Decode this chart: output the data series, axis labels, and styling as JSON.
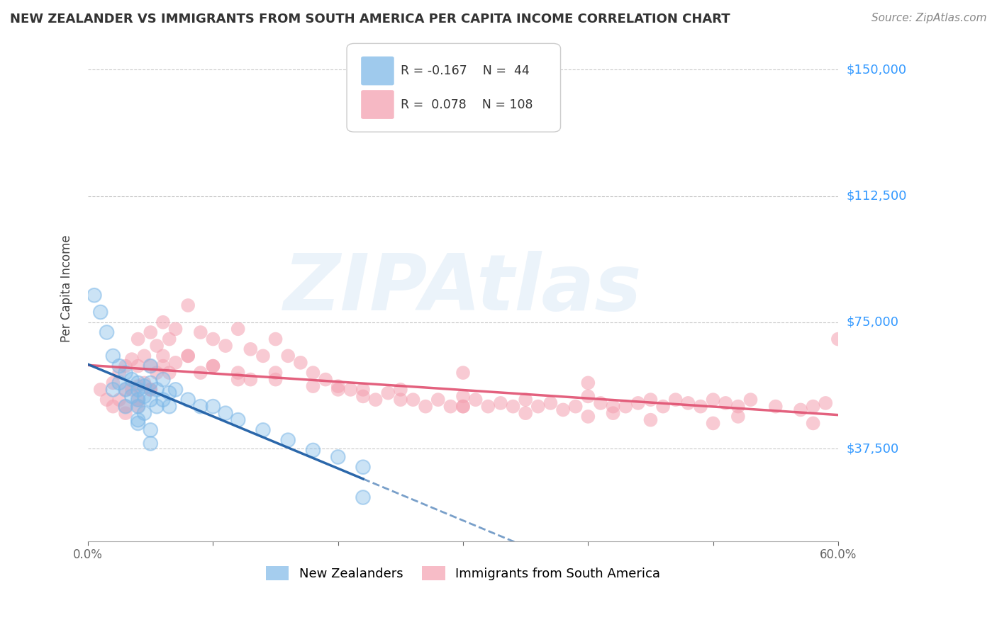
{
  "title": "NEW ZEALANDER VS IMMIGRANTS FROM SOUTH AMERICA PER CAPITA INCOME CORRELATION CHART",
  "source": "Source: ZipAtlas.com",
  "ylabel": "Per Capita Income",
  "y_ticks": [
    37500,
    75000,
    112500,
    150000
  ],
  "y_tick_labels": [
    "$37,500",
    "$75,000",
    "$112,500",
    "$150,000"
  ],
  "x_min": 0.0,
  "x_max": 0.6,
  "y_min": 10000,
  "y_max": 160000,
  "legend_r1": "R = -0.167",
  "legend_n1": "N =  44",
  "legend_r2": "R =  0.078",
  "legend_n2": "N = 108",
  "watermark": "ZIPAtlas",
  "blue_color": "#7fb9e8",
  "pink_color": "#f4a0b0",
  "blue_line_color": "#1f5fa6",
  "pink_line_color": "#e05070",
  "nz_x": [
    0.005,
    0.01,
    0.015,
    0.02,
    0.02,
    0.025,
    0.025,
    0.03,
    0.03,
    0.03,
    0.035,
    0.035,
    0.04,
    0.04,
    0.04,
    0.04,
    0.04,
    0.045,
    0.045,
    0.045,
    0.05,
    0.05,
    0.05,
    0.055,
    0.055,
    0.06,
    0.06,
    0.065,
    0.065,
    0.07,
    0.08,
    0.09,
    0.1,
    0.11,
    0.12,
    0.14,
    0.16,
    0.18,
    0.2,
    0.22,
    0.04,
    0.05,
    0.05,
    0.22
  ],
  "nz_y": [
    83000,
    78000,
    72000,
    65000,
    55000,
    62000,
    57000,
    60000,
    55000,
    50000,
    58000,
    53000,
    57000,
    55000,
    52000,
    50000,
    46000,
    56000,
    53000,
    48000,
    62000,
    57000,
    52000,
    55000,
    50000,
    58000,
    52000,
    54000,
    50000,
    55000,
    52000,
    50000,
    50000,
    48000,
    46000,
    43000,
    40000,
    37000,
    35000,
    32000,
    45000,
    43000,
    39000,
    23000
  ],
  "sa_x": [
    0.01,
    0.015,
    0.02,
    0.02,
    0.025,
    0.025,
    0.03,
    0.03,
    0.03,
    0.035,
    0.035,
    0.04,
    0.04,
    0.04,
    0.04,
    0.045,
    0.045,
    0.05,
    0.05,
    0.05,
    0.055,
    0.055,
    0.06,
    0.06,
    0.065,
    0.065,
    0.07,
    0.07,
    0.08,
    0.08,
    0.09,
    0.09,
    0.1,
    0.1,
    0.11,
    0.12,
    0.12,
    0.13,
    0.14,
    0.15,
    0.15,
    0.16,
    0.17,
    0.18,
    0.19,
    0.2,
    0.21,
    0.22,
    0.23,
    0.24,
    0.25,
    0.26,
    0.27,
    0.28,
    0.29,
    0.3,
    0.31,
    0.32,
    0.33,
    0.34,
    0.35,
    0.36,
    0.37,
    0.38,
    0.39,
    0.4,
    0.41,
    0.42,
    0.43,
    0.44,
    0.45,
    0.46,
    0.47,
    0.48,
    0.49,
    0.5,
    0.51,
    0.52,
    0.53,
    0.55,
    0.57,
    0.58,
    0.59,
    0.6,
    0.05,
    0.06,
    0.08,
    0.1,
    0.12,
    0.15,
    0.18,
    0.2,
    0.25,
    0.3,
    0.35,
    0.4,
    0.45,
    0.5,
    0.03,
    0.04,
    0.13,
    0.22,
    0.3,
    0.42,
    0.52,
    0.58,
    0.3,
    0.4
  ],
  "sa_y": [
    55000,
    52000,
    57000,
    50000,
    60000,
    52000,
    62000,
    55000,
    48000,
    64000,
    55000,
    70000,
    62000,
    56000,
    50000,
    65000,
    57000,
    72000,
    62000,
    55000,
    68000,
    60000,
    75000,
    65000,
    70000,
    60000,
    73000,
    63000,
    80000,
    65000,
    72000,
    60000,
    70000,
    62000,
    68000,
    73000,
    60000,
    67000,
    65000,
    70000,
    58000,
    65000,
    63000,
    60000,
    58000,
    56000,
    55000,
    53000,
    52000,
    54000,
    55000,
    52000,
    50000,
    52000,
    50000,
    53000,
    52000,
    50000,
    51000,
    50000,
    52000,
    50000,
    51000,
    49000,
    50000,
    53000,
    51000,
    50000,
    50000,
    51000,
    52000,
    50000,
    52000,
    51000,
    50000,
    52000,
    51000,
    50000,
    52000,
    50000,
    49000,
    50000,
    51000,
    70000,
    55000,
    62000,
    65000,
    62000,
    58000,
    60000,
    56000,
    55000,
    52000,
    50000,
    48000,
    47000,
    46000,
    45000,
    50000,
    52000,
    58000,
    55000,
    50000,
    48000,
    47000,
    45000,
    60000,
    57000
  ]
}
